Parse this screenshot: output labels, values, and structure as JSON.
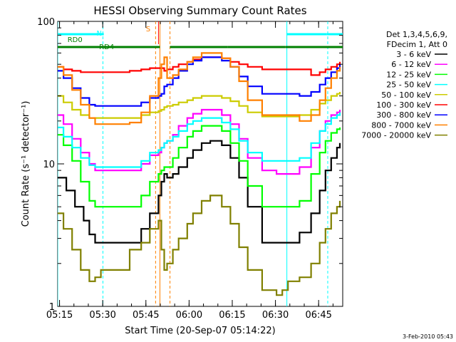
{
  "chart_data": {
    "type": "line",
    "title": "HESSI Observing Summary Count Rates",
    "xlabel": "Start Time (20-Sep-07 05:14:22)",
    "ylabel": "Count Rate (s⁻¹ detector⁻¹)",
    "y_scale": "log",
    "ylim": [
      1,
      100
    ],
    "y_tick_labels": [
      "1",
      "10",
      "100"
    ],
    "x_range_minutes": [
      0.0,
      99.0
    ],
    "x_tick_labels": [
      "05:15",
      "05:30",
      "05:45",
      "06:00",
      "06:15",
      "06:30",
      "06:45"
    ],
    "legend_header": [
      "Det 1,3,4,5,6,9,",
      "FDecim 1, Att 0"
    ],
    "legend_placement": "right",
    "series": [
      {
        "name": "3 - 6 keV",
        "color": "#000000",
        "x": [
          0,
          3,
          6,
          9,
          11,
          13,
          15,
          25,
          29,
          32,
          35,
          36,
          37,
          38,
          40,
          42,
          45,
          47,
          50,
          53,
          57,
          60,
          63,
          66,
          71,
          76,
          78,
          80,
          83,
          84,
          88,
          91,
          93,
          95,
          97,
          98
        ],
        "y": [
          8.0,
          6.5,
          5.0,
          4.0,
          3.2,
          2.8,
          2.8,
          2.8,
          3.5,
          4.5,
          6.0,
          7.5,
          8.5,
          8.0,
          8.5,
          9.5,
          11.0,
          12.5,
          14.0,
          14.5,
          13.5,
          11.0,
          8.0,
          5.0,
          2.8,
          2.8,
          2.8,
          2.8,
          2.8,
          3.3,
          4.5,
          6.5,
          9.0,
          11.0,
          13.0,
          14.0
        ]
      },
      {
        "name": "6 - 12 keV",
        "color": "#ff00ff",
        "x": [
          0,
          2,
          5,
          8,
          11,
          13,
          15,
          25,
          29,
          32,
          35,
          36,
          37,
          38,
          40,
          42,
          45,
          47,
          50,
          53,
          57,
          60,
          63,
          66,
          71,
          76,
          78,
          80,
          83,
          84,
          88,
          91,
          93,
          95,
          97,
          98
        ],
        "y": [
          22.0,
          19.0,
          15.0,
          12.0,
          10.0,
          9.0,
          9.0,
          9.0,
          10.0,
          11.5,
          12.0,
          13.0,
          14.0,
          14.5,
          16.0,
          18.5,
          21.0,
          22.5,
          24.0,
          24.0,
          22.0,
          19.0,
          15.0,
          11.0,
          9.0,
          8.5,
          8.5,
          8.5,
          8.5,
          9.5,
          13.0,
          17.0,
          20.0,
          22.0,
          23.0,
          24.0
        ]
      },
      {
        "name": "12 - 25 keV",
        "color": "#00ff00",
        "x": [
          0,
          2,
          5,
          8,
          11,
          13,
          15,
          25,
          29,
          32,
          35,
          36,
          37,
          38,
          40,
          42,
          45,
          47,
          50,
          53,
          57,
          60,
          63,
          66,
          71,
          76,
          78,
          80,
          83,
          84,
          88,
          91,
          93,
          95,
          97,
          98
        ],
        "y": [
          16.0,
          13.5,
          10.5,
          7.5,
          5.5,
          5.0,
          5.0,
          5.0,
          6.0,
          7.5,
          8.5,
          9.0,
          9.5,
          9.5,
          11.0,
          13.0,
          15.5,
          17.0,
          18.5,
          18.5,
          17.0,
          14.0,
          10.5,
          7.0,
          5.0,
          5.0,
          5.0,
          5.0,
          5.0,
          5.5,
          8.5,
          12.0,
          14.5,
          16.5,
          17.5,
          18.0
        ]
      },
      {
        "name": "25 - 50 keV",
        "color": "#00ffff",
        "x": [
          0,
          2,
          5,
          8,
          11,
          13,
          15,
          25,
          29,
          32,
          35,
          36,
          37,
          38,
          40,
          42,
          45,
          47,
          50,
          53,
          57,
          60,
          63,
          66,
          71,
          76,
          78,
          80,
          83,
          84,
          88,
          91,
          93,
          95,
          97,
          98
        ],
        "y": [
          18.0,
          15.5,
          13.0,
          11.0,
          9.8,
          9.5,
          9.5,
          9.5,
          10.5,
          12.0,
          12.5,
          13.0,
          14.0,
          14.5,
          15.5,
          17.0,
          19.0,
          20.0,
          21.0,
          21.0,
          19.5,
          17.5,
          14.5,
          12.0,
          10.5,
          10.5,
          10.5,
          10.5,
          10.5,
          11.0,
          14.0,
          17.0,
          19.0,
          21.0,
          22.0,
          23.0
        ]
      },
      {
        "name": "50 - 100 keV",
        "color": "#cccc00",
        "x": [
          0,
          2,
          5,
          8,
          11,
          13,
          15,
          25,
          29,
          32,
          35,
          36,
          37,
          38,
          40,
          42,
          45,
          47,
          50,
          53,
          57,
          60,
          63,
          66,
          71,
          76,
          78,
          80,
          83,
          84,
          88,
          91,
          93,
          95,
          97,
          98
        ],
        "y": [
          30.0,
          27.0,
          24.0,
          22.0,
          21.0,
          21.0,
          21.0,
          21.0,
          22.0,
          23.0,
          23.5,
          24.0,
          25.0,
          25.5,
          26.0,
          27.0,
          28.0,
          29.0,
          30.0,
          30.0,
          29.0,
          27.5,
          25.5,
          23.0,
          21.5,
          21.5,
          21.5,
          21.5,
          21.5,
          22.0,
          24.0,
          26.5,
          28.0,
          30.0,
          31.0,
          32.0
        ]
      },
      {
        "name": "100 - 300 keV",
        "color": "#ff0000",
        "x": [
          0,
          2,
          5,
          8,
          11,
          13,
          15,
          25,
          29,
          32,
          35,
          36,
          37,
          38,
          40,
          42,
          45,
          47,
          50,
          53,
          57,
          60,
          63,
          66,
          71,
          76,
          78,
          80,
          83,
          84,
          88,
          91,
          93,
          95,
          97,
          98
        ],
        "y": [
          48.0,
          46.0,
          45.0,
          44.0,
          44.0,
          44.0,
          44.0,
          45.0,
          46.0,
          47.0,
          47.0,
          47.0,
          45.0,
          46.0,
          48.0,
          50.0,
          52.0,
          54.0,
          56.0,
          56.0,
          55.0,
          52.0,
          50.0,
          48.0,
          46.0,
          46.0,
          46.0,
          46.0,
          46.0,
          46.0,
          42.0,
          44.0,
          46.0,
          48.0,
          50.0,
          52.0
        ]
      },
      {
        "name": "300 - 800 keV",
        "color": "#0000ff",
        "x": [
          0,
          2,
          5,
          8,
          11,
          13,
          15,
          25,
          29,
          32,
          35,
          36,
          37,
          38,
          40,
          42,
          45,
          47,
          50,
          53,
          57,
          60,
          63,
          66,
          71,
          76,
          78,
          80,
          83,
          84,
          88,
          91,
          93,
          95,
          97,
          98
        ],
        "y": [
          45.0,
          40.0,
          34.0,
          29.0,
          26.0,
          25.5,
          25.5,
          25.5,
          27.0,
          29.0,
          30.0,
          31.0,
          35.0,
          36.0,
          40.0,
          45.0,
          50.0,
          53.0,
          56.0,
          56.0,
          53.0,
          48.0,
          41.0,
          35.0,
          31.0,
          31.0,
          31.0,
          31.0,
          31.0,
          30.0,
          32.0,
          36.0,
          40.0,
          44.0,
          47.0,
          50.0
        ]
      },
      {
        "name": "800 - 7000 keV",
        "color": "#ff8000",
        "x": [
          0,
          2,
          5,
          8,
          11,
          13,
          15,
          25,
          29,
          32,
          35,
          36,
          37,
          38,
          40,
          42,
          45,
          47,
          50,
          53,
          57,
          60,
          63,
          66,
          71,
          76,
          78,
          80,
          83,
          84,
          88,
          91,
          93,
          95,
          97,
          98
        ],
        "y": [
          48.0,
          42.0,
          33.0,
          26.0,
          21.0,
          19.0,
          19.0,
          19.5,
          23.0,
          30.0,
          40.0,
          50.0,
          56.0,
          40.0,
          42.0,
          46.0,
          52.0,
          56.0,
          60.0,
          60.0,
          55.0,
          48.0,
          38.0,
          28.0,
          22.0,
          22.0,
          22.0,
          22.0,
          22.0,
          20.0,
          22.0,
          28.0,
          34.0,
          40.0,
          45.0,
          48.0
        ]
      },
      {
        "name": "7000 - 20000 keV",
        "color": "#808000",
        "x": [
          0,
          2,
          5,
          8,
          11,
          13,
          15,
          25,
          29,
          32,
          35,
          36,
          37,
          38,
          40,
          42,
          45,
          47,
          50,
          53,
          57,
          60,
          63,
          66,
          71,
          76,
          78,
          80,
          83,
          84,
          88,
          91,
          93,
          95,
          97,
          98
        ],
        "y": [
          4.5,
          3.5,
          2.5,
          1.8,
          1.5,
          1.6,
          1.8,
          2.5,
          2.8,
          3.5,
          4.0,
          2.5,
          1.8,
          2.0,
          2.5,
          3.0,
          3.8,
          4.5,
          5.5,
          6.0,
          5.0,
          3.8,
          2.6,
          1.8,
          1.3,
          1.2,
          1.3,
          1.5,
          1.5,
          1.6,
          2.0,
          2.8,
          3.5,
          4.5,
          5.0,
          5.5
        ]
      }
    ],
    "annotations": {
      "state_labels": [
        {
          "text": "N",
          "color": "#00ffff",
          "x": 14.4
        },
        {
          "text": "RD0",
          "color": "#008000",
          "x": 6.0
        },
        {
          "text": "RD4",
          "color": "#008000",
          "x": 17.0
        },
        {
          "text": "S",
          "color": "#ff8000",
          "x": 31.4
        }
      ],
      "night_bar_segments": [
        [
          0.0,
          16.0
        ],
        [
          79.5,
          93.5
        ],
        [
          93.5,
          99.0
        ]
      ],
      "rd_bar_segments": [
        [
          0.0,
          35.5
        ],
        [
          39.0,
          59.0
        ],
        [
          59.0,
          79.0
        ],
        [
          79.0,
          99.0
        ]
      ],
      "vertical_lines": [
        {
          "x": 0.0,
          "color": "#00ffff",
          "style": "solid"
        },
        {
          "x": 15.7,
          "color": "#00ffff",
          "style": "dashed"
        },
        {
          "x": 34.0,
          "color": "#ff8000",
          "style": "dashed"
        },
        {
          "x": 35.5,
          "color": "#ff8000",
          "style": "solid"
        },
        {
          "x": 39.0,
          "color": "#ff8000",
          "style": "dashed"
        },
        {
          "x": 79.6,
          "color": "#00ffff",
          "style": "solid"
        },
        {
          "x": 93.8,
          "color": "#00ffff",
          "style": "dashed"
        }
      ]
    },
    "footer": "3-Feb-2010 05:43"
  }
}
